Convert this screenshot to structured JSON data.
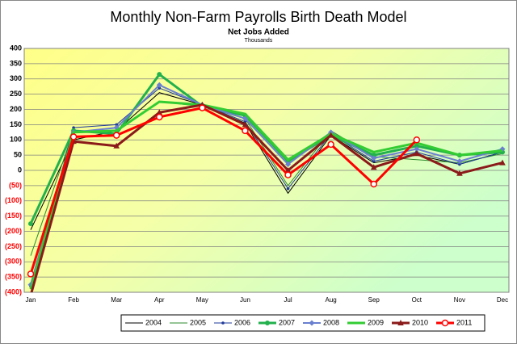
{
  "chart_data": {
    "type": "line",
    "title": "Monthly Non-Farm Payrolls Birth Death Model",
    "subtitle": "Net Jobs Added",
    "unit_label": "Thousands",
    "categories": [
      "Jan",
      "Feb",
      "Mar",
      "Apr",
      "May",
      "Jun",
      "Jul",
      "Aug",
      "Sep",
      "Oct",
      "Nov",
      "Dec"
    ],
    "ylim": [
      -400,
      400
    ],
    "yticks": [
      {
        "value": -400,
        "label": "(400)"
      },
      {
        "value": -350,
        "label": "(350)"
      },
      {
        "value": -300,
        "label": "(300)"
      },
      {
        "value": -250,
        "label": "(250)"
      },
      {
        "value": -200,
        "label": "(200)"
      },
      {
        "value": -150,
        "label": "(150)"
      },
      {
        "value": -100,
        "label": "(100)"
      },
      {
        "value": -50,
        "label": "(50)"
      },
      0,
      50,
      100,
      150,
      200,
      250,
      300,
      350,
      400
    ],
    "grid": true,
    "legend": "bottom",
    "series": [
      {
        "name": "2004",
        "color": "#000000",
        "width": 1,
        "marker": "none",
        "values": [
          -195,
          100,
          130,
          255,
          215,
          155,
          -75,
          115,
          25,
          50,
          20,
          60
        ]
      },
      {
        "name": "2005",
        "color": "#2e8b2e",
        "width": 1,
        "marker": "none",
        "values": [
          -280,
          130,
          130,
          225,
          210,
          170,
          -50,
          130,
          45,
          35,
          25,
          55
        ]
      },
      {
        "name": "2006",
        "color": "#1f3a9a",
        "width": 1,
        "marker": "dot",
        "values": [
          -380,
          140,
          150,
          270,
          215,
          160,
          -60,
          120,
          30,
          60,
          20,
          60
        ]
      },
      {
        "name": "2007",
        "color": "#22b14c",
        "width": 3,
        "marker": "circle",
        "values": [
          -175,
          130,
          120,
          315,
          210,
          180,
          30,
          115,
          50,
          80,
          50,
          60
        ]
      },
      {
        "name": "2008",
        "color": "#6a7fd0",
        "width": 2,
        "marker": "diamond",
        "values": [
          -375,
          125,
          140,
          280,
          215,
          170,
          20,
          125,
          40,
          70,
          30,
          70
        ]
      },
      {
        "name": "2009",
        "color": "#33cc33",
        "width": 3,
        "marker": "none",
        "values": [
          -390,
          125,
          130,
          225,
          215,
          185,
          35,
          120,
          60,
          90,
          50,
          65
        ]
      },
      {
        "name": "2010",
        "color": "#8b1a1a",
        "width": 3,
        "marker": "triangle",
        "values": [
          -410,
          95,
          80,
          190,
          215,
          150,
          0,
          115,
          10,
          55,
          -10,
          25
        ]
      },
      {
        "name": "2011",
        "color": "#ff0000",
        "width": 3,
        "marker": "open-circle",
        "values": [
          -340,
          110,
          115,
          175,
          205,
          130,
          -15,
          85,
          -45,
          100,
          null,
          null
        ]
      }
    ]
  }
}
